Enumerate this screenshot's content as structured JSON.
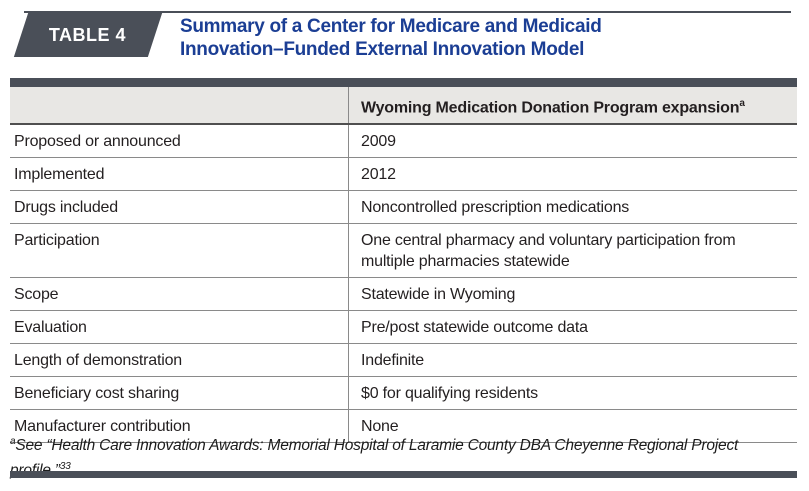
{
  "colors": {
    "accent_dark": "#4a4f58",
    "title_blue": "#1b3e94",
    "header_row_bg": "#e8e7e4",
    "border_gray": "#8a8a8a",
    "body_text": "#231f20"
  },
  "header": {
    "badge_label": "TABLE 4",
    "title_line1": "Summary of a Center for Medicare and Medicaid",
    "title_line2": "Innovation–Funded External Innovation Model"
  },
  "table": {
    "column_header": "Wyoming Medication Donation Program expansion",
    "column_header_superscript": "a",
    "rows": [
      {
        "label": "Proposed or announced",
        "value": "2009"
      },
      {
        "label": "Implemented",
        "value": "2012"
      },
      {
        "label": "Drugs included",
        "value": "Noncontrolled prescription medications"
      },
      {
        "label": "Participation",
        "value": "One central pharmacy and voluntary participation from multiple pharmacies statewide"
      },
      {
        "label": "Scope",
        "value": "Statewide in Wyoming"
      },
      {
        "label": "Evaluation",
        "value": "Pre/post statewide outcome data"
      },
      {
        "label": "Length of demonstration",
        "value": "Indefinite"
      },
      {
        "label": "Beneficiary cost sharing",
        "value": "$0 for qualifying residents"
      },
      {
        "label": "Manufacturer contribution",
        "value": "None"
      }
    ]
  },
  "footnote": {
    "superscript": "a",
    "text": "See “Health Care Innovation Awards: Memorial Hospital of Laramie County DBA Cheyenne Regional Project profile.”",
    "citation_superscript": "33"
  }
}
